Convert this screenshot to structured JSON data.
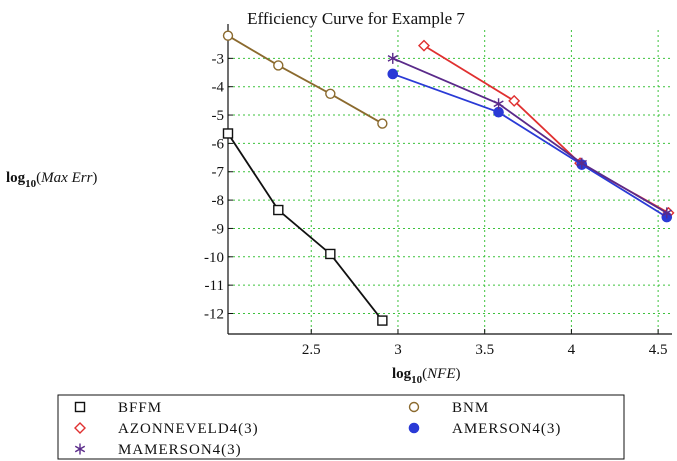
{
  "chart_data": {
    "type": "line",
    "title": "Efficiency Curve for Example 7",
    "xlabel": {
      "prefix": "log",
      "sub": "10",
      "arg": "NFE"
    },
    "ylabel": {
      "prefix": "log",
      "sub": "10",
      "arg": "Max Err"
    },
    "xlim": [
      2.02,
      4.58
    ],
    "ylim": [
      -12.3,
      -2.0
    ],
    "xticks": [
      2.5,
      3,
      3.5,
      4,
      4.5
    ],
    "xtick_labels": [
      "2.5",
      "3",
      "3.5",
      "4",
      "4.5"
    ],
    "yticks": [
      -3,
      -4,
      -5,
      -6,
      -7,
      -8,
      -9,
      -10,
      -11,
      -12
    ],
    "ytick_labels": [
      "-3",
      "-4",
      "-5",
      "-6",
      "-7",
      "-8",
      "-9",
      "-10",
      "-11",
      "-12"
    ],
    "grid": true,
    "legend_position": "bottom",
    "series": [
      {
        "name": "BFFM",
        "color": "#111111",
        "marker": "square",
        "x": [
          2.02,
          2.31,
          2.61,
          2.91
        ],
        "y": [
          -5.65,
          -8.35,
          -9.9,
          -12.25
        ]
      },
      {
        "name": "BNM",
        "color": "#8b6a2e",
        "marker": "circle-open",
        "x": [
          2.02,
          2.31,
          2.61,
          2.91
        ],
        "y": [
          -2.2,
          -3.25,
          -4.25,
          -5.3
        ]
      },
      {
        "name": "AZONNEVELD4(3)",
        "color": "#e03030",
        "marker": "diamond-open",
        "x": [
          3.15,
          3.67,
          4.05,
          4.56
        ],
        "y": [
          -2.55,
          -4.5,
          -6.7,
          -8.45
        ]
      },
      {
        "name": "AMERSON4(3)",
        "color": "#2a3ad6",
        "marker": "circle-filled",
        "x": [
          2.97,
          3.58,
          4.06,
          4.55
        ],
        "y": [
          -3.55,
          -4.9,
          -6.75,
          -8.6
        ]
      },
      {
        "name": "MAMERSON4(3)",
        "color": "#5a2a8a",
        "marker": "star",
        "x": [
          2.97,
          3.58,
          4.06,
          4.55
        ],
        "y": [
          -3.0,
          -4.6,
          -6.7,
          -8.45
        ]
      }
    ]
  }
}
